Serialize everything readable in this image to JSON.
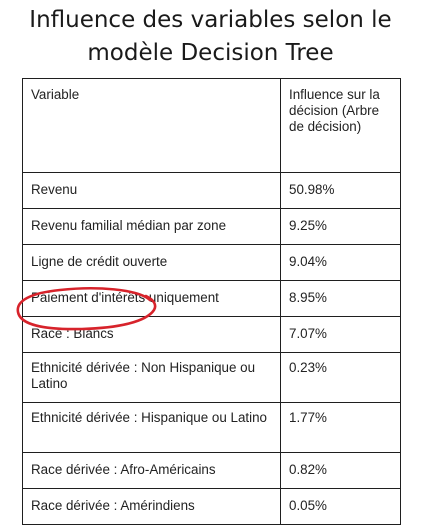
{
  "title": {
    "line1": "Influence des variables selon le",
    "line2": "modèle Decision Tree"
  },
  "table": {
    "headers": {
      "variable": "Variable",
      "influence": "Influence sur la décision (Arbre de décision)"
    },
    "rows": [
      {
        "variable": "Revenu",
        "influence": "50.98%"
      },
      {
        "variable": "Revenu familial médian par zone",
        "influence": "9.25%"
      },
      {
        "variable": "Ligne de crédit ouverte",
        "influence": "9.04%"
      },
      {
        "variable": "Paiement d'intérêts uniquement",
        "influence": "8.95%"
      },
      {
        "variable": "Race : Blancs",
        "influence": "7.07%"
      },
      {
        "variable": "Ethnicité dérivée : Non Hispanique ou Latino",
        "influence": "0.23%"
      },
      {
        "variable": "Ethnicité dérivée : Hispanique ou Latino",
        "influence": "1.77%"
      },
      {
        "variable": "Race dérivée : Afro-Américains",
        "influence": "0.82%"
      },
      {
        "variable": "Race dérivée : Amérindiens",
        "influence": "0.05%"
      }
    ]
  },
  "highlight": {
    "color": "#d7232b",
    "target": "Race : Blancs"
  }
}
